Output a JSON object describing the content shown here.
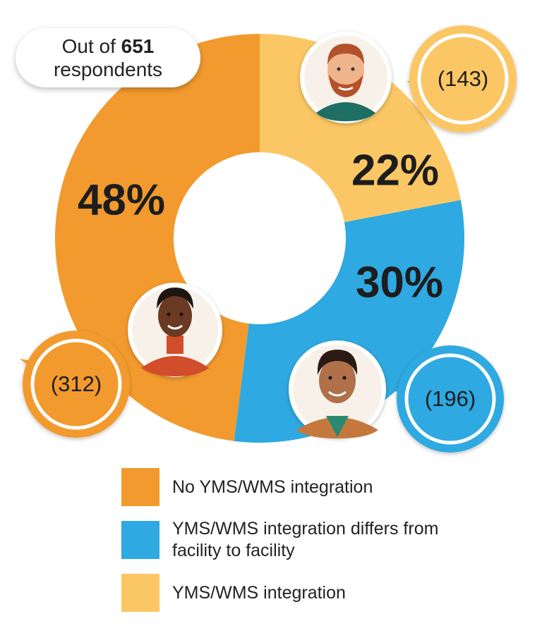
{
  "chart_data": {
    "type": "donut",
    "note": {
      "prefix": "Out of",
      "total": 651,
      "suffix": "respondents"
    },
    "categories": [
      "No YMS/WMS integration",
      "YMS/WMS integration differs from facility to facility",
      "YMS/WMS integration"
    ],
    "values": [
      48,
      30,
      22
    ],
    "value_labels": [
      "48%",
      "30%",
      "22%"
    ],
    "counts": [
      312,
      196,
      143
    ],
    "count_labels": [
      "(312)",
      "(196)",
      "(143)"
    ],
    "colors": [
      "#f29a2e",
      "#2fa9e1",
      "#fbc765"
    ]
  }
}
